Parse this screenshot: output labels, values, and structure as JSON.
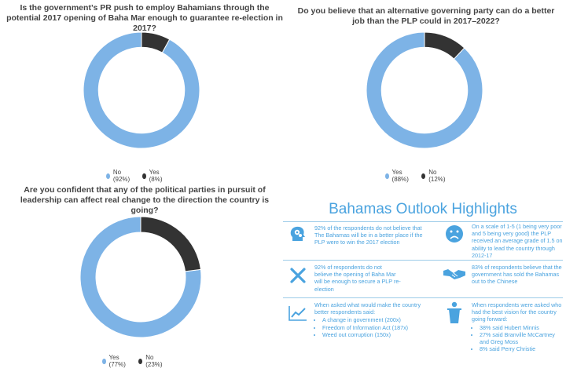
{
  "chart_data": [
    {
      "type": "pie",
      "title": "Is the government’s PR push to employ Bahamians through the potential 2017 opening of Baha Mar enough to guarantee re-election in 2017?",
      "categories": [
        "No",
        "Yes"
      ],
      "values": [
        92,
        8
      ],
      "legend_labels": [
        "No (92%)",
        "Yes (8%)"
      ],
      "colors": [
        "#7db3e6",
        "#333333"
      ],
      "legend": "bottom"
    },
    {
      "type": "pie",
      "title": "Do you believe that an alternative governing party can do a better job than the PLP could in 2017–2022?",
      "categories": [
        "Yes",
        "No"
      ],
      "values": [
        88,
        12
      ],
      "legend_labels": [
        "Yes (88%)",
        "No (12%)"
      ],
      "colors": [
        "#7db3e6",
        "#333333"
      ],
      "legend": "bottom"
    },
    {
      "type": "pie",
      "title": "Are you confident that any of the political parties in pursuit of leadership can affect real change to the direction the country is going?",
      "categories": [
        "Yes",
        "No"
      ],
      "values": [
        77,
        23
      ],
      "legend_labels": [
        "Yes (77%)",
        "No (23%)"
      ],
      "colors": [
        "#7db3e6",
        "#333333"
      ],
      "legend": "bottom"
    }
  ],
  "highlights": {
    "title": "Bahamas Outlook Highlights",
    "accent": "#4aa3df",
    "cells": [
      {
        "icon": "brain-gears-icon",
        "text": "92% of the respondents do not believe that The Bahamas will be in a better place if the PLP were to win the 2017 election"
      },
      {
        "icon": "sad-face-icon",
        "text": "On a scale of 1-5 (1 being very poor and 5 being very good) the PLP received an average grade of 1.5 on ability to lead the country through 2012-17"
      },
      {
        "icon": "x-mark-icon",
        "text": "92% of respondents do not believe the opening of Baha Mar will be enough to secure a PLP re-election"
      },
      {
        "icon": "handshake-icon",
        "text": "83% of respondents believe that the government has sold the Bahamas out to the Chinese"
      },
      {
        "icon": "trend-chart-icon",
        "text": "When asked what would make the country better respondents said:",
        "bullets": [
          "A change in government (200x)",
          "Freedom of Information Act (187x)",
          "Weed out corruption (150x)"
        ]
      },
      {
        "icon": "podium-speaker-icon",
        "text": "When respondents were asked who had the best vision for the country going forward:",
        "bullets": [
          "38% said Hubert Minnis",
          "27% said Branville McCartney and Greg Moss",
          "8% said Perry Christie"
        ]
      }
    ]
  }
}
